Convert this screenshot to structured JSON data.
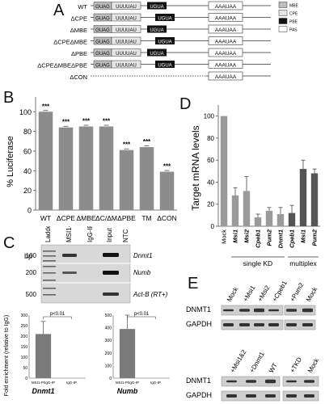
{
  "panels": {
    "a": "A",
    "b": "B",
    "c": "C",
    "d": "D",
    "e": "E"
  },
  "panel_a": {
    "constructs": [
      {
        "label": "WT",
        "seq1": "GUAG",
        "seq2": "UUUUAU",
        "mid": "UGUA",
        "tail": "AAAUAA"
      },
      {
        "label": "ΔCPE",
        "seq1": "GUAG",
        "seq2": "UUUUAU",
        "mid": "UGUA",
        "tail": "AAAUAA"
      },
      {
        "label": "ΔMBE",
        "seq1": "GUAG",
        "seq2": "UUUUAU",
        "mid": "UGUA",
        "tail": "AAAUAA"
      },
      {
        "label": "ΔCPEΔMBE",
        "seq1": "GUAG",
        "seq2": "UUUUAU",
        "mid": "UGUA",
        "tail": "AAAUAA"
      },
      {
        "label": "ΔPBE",
        "seq1": "GUAG",
        "seq2": "UUUUAU",
        "mid": "UGUA",
        "tail": "AAAUAA"
      },
      {
        "label": "ΔCPEΔMBEΔPBE",
        "seq1": "GUAG",
        "seq2": "UUUUAU",
        "mid": "UGUA",
        "tail": "AAAUAA"
      },
      {
        "label": "ΔCON",
        "seq1": "",
        "seq2": "",
        "mid": "",
        "tail": "AAAUAA"
      }
    ],
    "legend": [
      "MBE",
      "CPE",
      "PBE",
      "PAS"
    ]
  },
  "panel_b": {
    "chart_data": {
      "type": "bar",
      "categories": [
        "WT",
        "ΔCPE",
        "ΔMBE",
        "ΔC/ΔM",
        "ΔPBE",
        "TM",
        "ΔCON"
      ],
      "values": [
        100,
        84,
        85,
        85,
        61,
        64,
        39
      ],
      "significance": [
        "***",
        "***",
        "***",
        "***",
        "***",
        "***",
        "***"
      ],
      "ylabel": "% Luciferase",
      "yticks": [
        "0",
        "20",
        "40",
        "60",
        "80",
        "100"
      ],
      "ylim": [
        0,
        115
      ],
      "color": "#8c8c8c"
    }
  },
  "panel_c": {
    "bp_label": "bp",
    "lane_labels": [
      "Ladder",
      "MSI1-IP",
      "IgG-IP",
      "Input",
      "NTC"
    ],
    "ladder_marks": [
      "100",
      "200",
      "500"
    ],
    "gene_labels": [
      "Dnmt1",
      "Numb",
      "Act-B (RT+)"
    ],
    "chart_dnmt1": {
      "type": "bar",
      "categories": [
        "MSI1-P/IgG-IP",
        "IgG-IP"
      ],
      "values": [
        210,
        0
      ],
      "error": [
        60,
        0
      ],
      "pvalue": "p<0.01",
      "ylabel": "Fold enrichment (relative to IgG)",
      "yticks": [
        "0",
        "50",
        "100",
        "150",
        "200",
        "250",
        "300"
      ],
      "ylim": [
        0,
        300
      ],
      "gene": "Dnmt1"
    },
    "chart_numb": {
      "type": "bar",
      "categories": [
        "MSI1-P/IgG-IP",
        "IgG-IP"
      ],
      "values": [
        390,
        0
      ],
      "error": [
        110,
        0
      ],
      "pvalue": "p<0.01",
      "yticks": [
        "0",
        "100",
        "200",
        "300",
        "400",
        "500"
      ],
      "ylim": [
        0,
        500
      ],
      "gene": "Numb"
    }
  },
  "panel_d": {
    "chart_data": {
      "type": "bar",
      "categories": [
        "Mock",
        "Msi1",
        "Msi2",
        "Cpeb1",
        "Pum2",
        "Dnmt1",
        "Cpeb1",
        "Msi1",
        "Pum2"
      ],
      "values": [
        100,
        28,
        32,
        8,
        14,
        11,
        12,
        52,
        48
      ],
      "error": [
        0,
        7,
        13,
        3,
        3,
        6,
        7,
        8,
        4
      ],
      "colors": [
        "#9a9a9a",
        "#9a9a9a",
        "#9a9a9a",
        "#9a9a9a",
        "#9a9a9a",
        "#9a9a9a",
        "#555555",
        "#555555",
        "#555555"
      ],
      "ylabel": "Target mRNA levels",
      "yticks": [
        "0",
        "20",
        "40",
        "60",
        "80",
        "100"
      ],
      "ylim": [
        0,
        110
      ],
      "group_labels": [
        "single KD",
        "multiplex"
      ]
    }
  },
  "panel_e": {
    "blot1_lanes": [
      "Mock",
      "+Msi1",
      "+Msi2",
      "+Cpeb1",
      "+Pum2",
      "Mock"
    ],
    "blot2_lanes": [
      "+Msi1&2",
      "+Dnmt1",
      "WT",
      "+TKD",
      "Mock"
    ],
    "row_labels": [
      "DNMT1",
      "GAPDH"
    ]
  }
}
